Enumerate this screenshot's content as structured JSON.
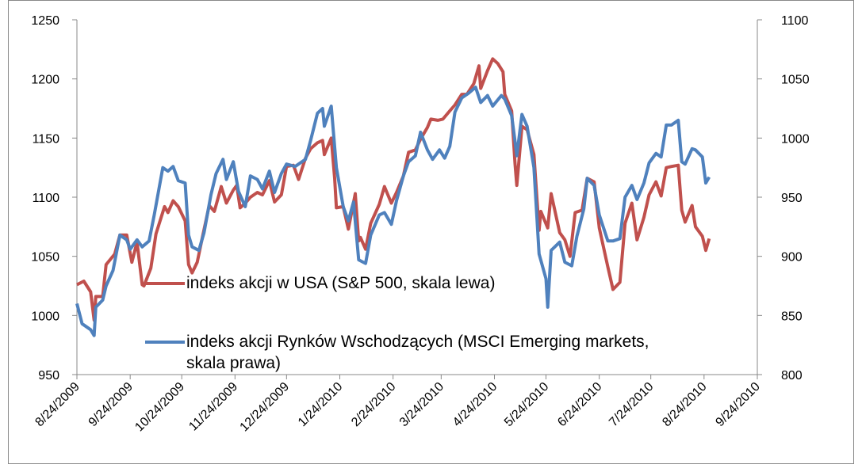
{
  "chart_data": {
    "type": "line",
    "xlim": [
      "8/24/2009",
      "9/24/2010"
    ],
    "xticks": [
      "8/24/2009",
      "9/24/2009",
      "10/24/2009",
      "11/24/2009",
      "12/24/2009",
      "1/24/2010",
      "2/24/2010",
      "3/24/2010",
      "4/24/2010",
      "5/24/2010",
      "6/24/2010",
      "7/24/2010",
      "8/24/2010",
      "9/24/2010"
    ],
    "ylim": [
      950,
      1250
    ],
    "yticks": [
      950,
      1000,
      1050,
      1100,
      1150,
      1200,
      1250
    ],
    "y2lim": [
      800,
      1100
    ],
    "y2ticks": [
      800,
      850,
      900,
      950,
      1000,
      1050,
      1100
    ],
    "legend": "center",
    "series": [
      {
        "name": "indeks akcji w USA (S&P 500, skala lewa)",
        "color": "#c0504d",
        "x": [
          "8/24/2009",
          "8/28/2009",
          "9/1/2009",
          "9/3/2009",
          "9/4/2009",
          "9/8/2009",
          "9/10/2009",
          "9/15/2009",
          "9/18/2009",
          "9/22/2009",
          "9/25/2009",
          "9/28/2009",
          "10/1/2009",
          "10/2/2009",
          "10/6/2009",
          "10/9/2009",
          "10/14/2009",
          "10/16/2009",
          "10/19/2009",
          "10/22/2009",
          "10/26/2009",
          "10/28/2009",
          "10/30/2009",
          "11/2/2009",
          "11/5/2009",
          "11/9/2009",
          "11/12/2009",
          "11/16/2009",
          "11/19/2009",
          "11/23/2009",
          "11/25/2009",
          "11/27/2009",
          "11/30/2009",
          "12/3/2009",
          "12/7/2009",
          "12/10/2009",
          "12/14/2009",
          "12/17/2009",
          "12/21/2009",
          "12/24/2009",
          "12/28/2009",
          "12/31/2009",
          "1/4/2010",
          "1/7/2010",
          "1/11/2010",
          "1/14/2010",
          "1/15/2010",
          "1/19/2010",
          "1/21/2010",
          "1/22/2010",
          "1/26/2010",
          "1/29/2010",
          "2/2/2010",
          "2/4/2010",
          "2/5/2010",
          "2/8/2010",
          "2/11/2010",
          "2/16/2010",
          "2/19/2010",
          "2/23/2010",
          "2/26/2010",
          "3/2/2010",
          "3/5/2010",
          "3/9/2010",
          "3/12/2010",
          "3/16/2010",
          "3/18/2010",
          "3/22/2010",
          "3/25/2010",
          "3/29/2010",
          "4/1/2010",
          "4/5/2010",
          "4/8/2010",
          "4/12/2010",
          "4/15/2010",
          "4/16/2010",
          "4/20/2010",
          "4/23/2010",
          "4/26/2010",
          "4/29/2010",
          "4/30/2010",
          "5/4/2010",
          "5/6/2010",
          "5/7/2010",
          "5/10/2010",
          "5/13/2010",
          "5/17/2010",
          "5/20/2010",
          "5/21/2010",
          "5/25/2010",
          "5/27/2010",
          "6/1/2010",
          "6/4/2010",
          "6/7/2010",
          "6/10/2010",
          "6/14/2010",
          "6/17/2010",
          "6/21/2010",
          "6/24/2010",
          "6/29/2010",
          "7/2/2010",
          "7/6/2010",
          "7/9/2010",
          "7/13/2010",
          "7/16/2010",
          "7/20/2010",
          "7/23/2010",
          "7/27/2010",
          "7/30/2010",
          "8/2/2010",
          "8/5/2010",
          "8/9/2010",
          "8/11/2010",
          "8/13/2010",
          "8/17/2010",
          "8/19/2010",
          "8/23/2010",
          "8/25/2010",
          "8/27/2010"
        ],
        "values": [
          1026,
          1029,
          1020,
          996,
          1016,
          1016,
          1043,
          1052,
          1068,
          1068,
          1045,
          1062,
          1026,
          1025,
          1040,
          1069,
          1092,
          1087,
          1097,
          1092,
          1080,
          1043,
          1036,
          1045,
          1066,
          1093,
          1088,
          1109,
          1095,
          1106,
          1110,
          1091,
          1095,
          1100,
          1104,
          1102,
          1114,
          1096,
          1102,
          1126,
          1127,
          1115,
          1133,
          1141,
          1146,
          1148,
          1136,
          1150,
          1116,
          1091,
          1092,
          1073,
          1103,
          1063,
          1066,
          1056,
          1078,
          1094,
          1109,
          1095,
          1104,
          1118,
          1138,
          1140,
          1149,
          1159,
          1166,
          1165,
          1166,
          1173,
          1178,
          1187,
          1187,
          1196,
          1211,
          1192,
          1207,
          1217,
          1213,
          1206,
          1187,
          1173,
          1128,
          1110,
          1160,
          1157,
          1136,
          1072,
          1088,
          1074,
          1103,
          1070,
          1064,
          1050,
          1087,
          1089,
          1116,
          1113,
          1074,
          1041,
          1022,
          1028,
          1078,
          1095,
          1064,
          1083,
          1102,
          1113,
          1101,
          1125,
          1126,
          1127,
          1089,
          1079,
          1093,
          1075,
          1067,
          1055,
          1065
        ]
      },
      {
        "name": "indeks akcji Rynków Wschodzących (MSCI Emerging markets, skala prawa)",
        "color": "#4f81bd",
        "axis": "y2",
        "x": [
          "8/24/2009",
          "8/27/2009",
          "9/1/2009",
          "9/3/2009",
          "9/4/2009",
          "9/8/2009",
          "9/10/2009",
          "9/14/2009",
          "9/18/2009",
          "9/22/2009",
          "9/24/2009",
          "9/28/2009",
          "10/1/2009",
          "10/5/2009",
          "10/8/2009",
          "10/13/2009",
          "10/16/2009",
          "10/19/2009",
          "10/22/2009",
          "10/26/2009",
          "10/28/2009",
          "10/30/2009",
          "11/3/2009",
          "11/6/2009",
          "11/10/2009",
          "11/13/2009",
          "11/17/2009",
          "11/19/2009",
          "11/23/2009",
          "11/26/2009",
          "11/30/2009",
          "12/3/2009",
          "12/7/2009",
          "12/10/2009",
          "12/14/2009",
          "12/17/2009",
          "12/21/2009",
          "12/24/2009",
          "12/29/2009",
          "1/4/2010",
          "1/7/2010",
          "1/11/2010",
          "1/14/2010",
          "1/15/2010",
          "1/19/2010",
          "1/22/2010",
          "1/26/2010",
          "1/29/2010",
          "2/1/2010",
          "2/4/2010",
          "2/8/2010",
          "2/11/2010",
          "2/16/2010",
          "2/19/2010",
          "2/23/2010",
          "2/26/2010",
          "3/2/2010",
          "3/5/2010",
          "3/9/2010",
          "3/12/2010",
          "3/16/2010",
          "3/19/2010",
          "3/23/2010",
          "3/26/2010",
          "3/29/2010",
          "4/1/2010",
          "4/5/2010",
          "4/9/2010",
          "4/13/2010",
          "4/16/2010",
          "4/20/2010",
          "4/23/2010",
          "4/28/2010",
          "4/30/2010",
          "5/4/2010",
          "5/6/2010",
          "5/7/2010",
          "5/10/2010",
          "5/13/2010",
          "5/17/2010",
          "5/20/2010",
          "5/24/2010",
          "5/25/2010",
          "5/27/2010",
          "6/1/2010",
          "6/4/2010",
          "6/8/2010",
          "6/11/2010",
          "6/15/2010",
          "6/17/2010",
          "6/21/2010",
          "6/24/2010",
          "6/29/2010",
          "7/2/2010",
          "7/6/2010",
          "7/9/2010",
          "7/13/2010",
          "7/16/2010",
          "7/20/2010",
          "7/23/2010",
          "7/27/2010",
          "7/30/2010",
          "8/2/2010",
          "8/5/2010",
          "8/9/2010",
          "8/11/2010",
          "8/13/2010",
          "8/17/2010",
          "8/19/2010",
          "8/23/2010",
          "8/25/2010",
          "8/27/2010"
        ],
        "values": [
          860,
          843,
          838,
          833,
          857,
          863,
          875,
          888,
          918,
          914,
          906,
          914,
          908,
          913,
          935,
          975,
          972,
          976,
          964,
          962,
          918,
          908,
          905,
          920,
          952,
          970,
          982,
          965,
          980,
          955,
          942,
          968,
          965,
          957,
          972,
          954,
          970,
          978,
          976,
          982,
          998,
          1021,
          1025,
          1010,
          1027,
          975,
          942,
          930,
          946,
          897,
          894,
          918,
          935,
          937,
          927,
          947,
          968,
          980,
          985,
          1005,
          990,
          982,
          990,
          983,
          993,
          1022,
          1034,
          1038,
          1043,
          1030,
          1036,
          1027,
          1036,
          1033,
          1019,
          997,
          985,
          1020,
          1010,
          975,
          902,
          881,
          857,
          905,
          912,
          895,
          892,
          917,
          940,
          966,
          960,
          935,
          913,
          913,
          915,
          950,
          960,
          948,
          962,
          979,
          987,
          984,
          1011,
          1011,
          1015,
          980,
          978,
          991,
          990,
          984,
          962,
          967
        ]
      }
    ]
  }
}
